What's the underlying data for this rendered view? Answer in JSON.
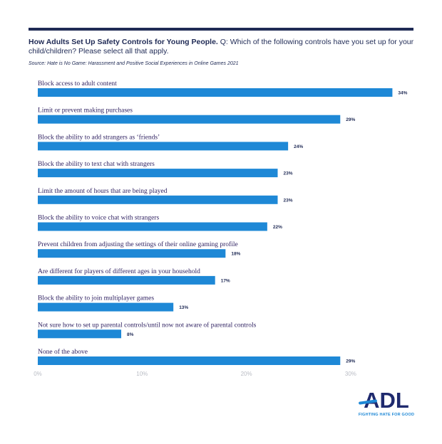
{
  "header": {
    "title_bold": "How Adults Set Up Safety Controls for Young People.",
    "title_rest": " Q: Which of the following controls have you set up for your child/children? Please select all that apply.",
    "source": "Source: Hate is No Game: Harassment and Positive Social Experiences in Online Games 2021"
  },
  "chart_data": {
    "type": "bar",
    "orientation": "horizontal",
    "title": "How Adults Set Up Safety Controls for Young People.",
    "xlim": [
      0,
      34
    ],
    "ticks": [
      0,
      10,
      20,
      30
    ],
    "tick_labels": [
      "0%",
      "10%",
      "20%",
      "30%"
    ],
    "bar_color": "#1e88d6",
    "categories": [
      "Block access to adult content",
      "Limit or prevent making purchases",
      "Block the ability to add strangers as ‘friends’",
      "Block the ability to text chat with strangers",
      "Limit the amount of hours that are being played",
      "Block the ability to voice chat with strangers",
      "Prevent children from adjusting the settings of their online gaming profile",
      "Are different for players of different ages in your household",
      "Block the ability to join multiplayer games",
      "Not sure how to set up parental controls/until now not aware of parental controls",
      "None of the above"
    ],
    "values": [
      34,
      29,
      24,
      23,
      23,
      22,
      18,
      17,
      13,
      8,
      29
    ],
    "value_labels": [
      "34%",
      "29%",
      "24%",
      "23%",
      "23%",
      "22%",
      "18%",
      "17%",
      "13%",
      "8%",
      "29%"
    ]
  },
  "logo": {
    "word": "ADL",
    "tagline": "FIGHTING HATE FOR GOOD"
  }
}
